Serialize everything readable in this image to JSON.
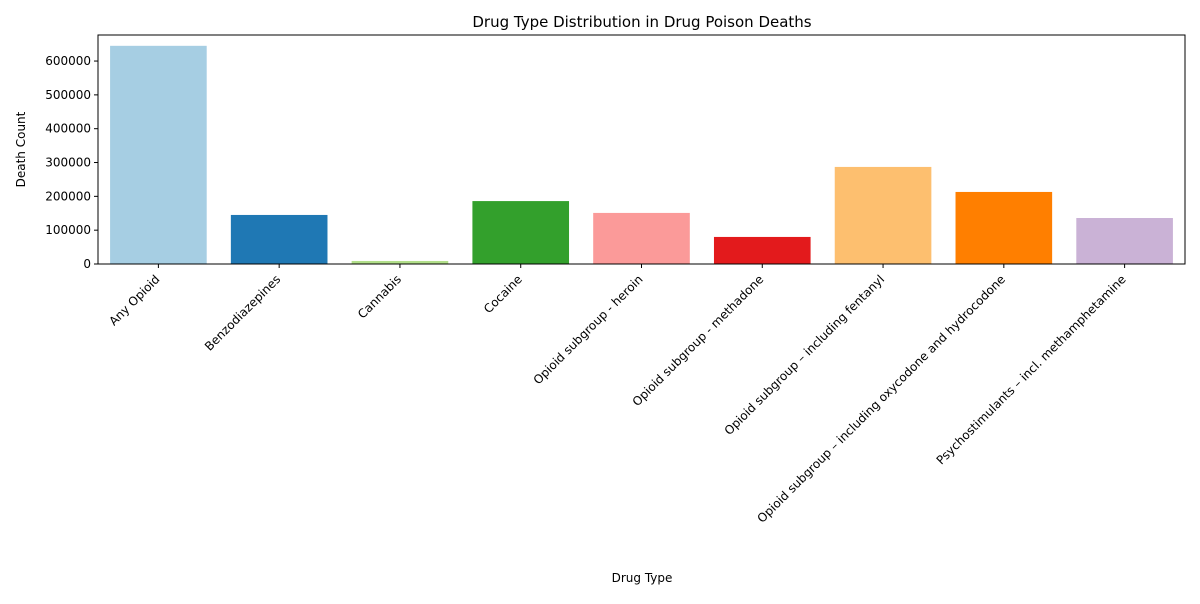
{
  "chart_data": {
    "type": "bar",
    "title": "Drug Type Distribution in Drug Poison Deaths",
    "xlabel": "Drug Type",
    "ylabel": "Death Count",
    "ylim": [
      0,
      677000
    ],
    "yticks": [
      0,
      100000,
      200000,
      300000,
      400000,
      500000,
      600000
    ],
    "ytick_labels": [
      "0",
      "100000",
      "200000",
      "300000",
      "400000",
      "500000",
      "600000"
    ],
    "grid": false,
    "legend": "none",
    "categories": [
      "Any Opioid",
      "Benzodiazepines",
      "Cannabis",
      "Cocaine",
      "Opioid subgroup - heroin",
      "Opioid subgroup - methadone",
      "Opioid subgroup – including fentanyl",
      "Opioid subgroup – including oxycodone and hydrocodone",
      "Psychostimulants – incl. methamphetamine"
    ],
    "values": [
      645000,
      145000,
      9000,
      186000,
      151000,
      80000,
      287000,
      213000,
      136000
    ],
    "colors": [
      "#a6cee3",
      "#1f78b4",
      "#b2df8a",
      "#33a02c",
      "#fb9a99",
      "#e31a1c",
      "#fdbf6f",
      "#ff7f00",
      "#cab2d6"
    ]
  }
}
